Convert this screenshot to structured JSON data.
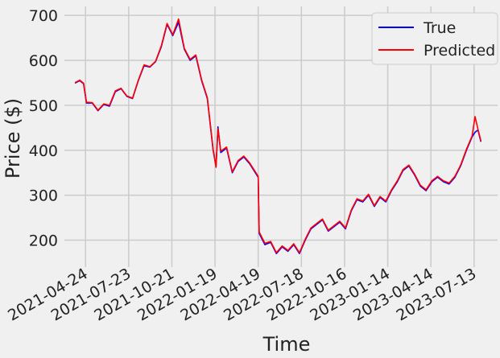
{
  "chart_data": {
    "type": "line",
    "title": "",
    "xlabel": "Time",
    "ylabel": "Price ($)",
    "ylim": [
      140,
      720
    ],
    "xlim": [
      "2021-03-11",
      "2023-08-31"
    ],
    "grid": true,
    "legend_position": "top-right",
    "x_ticks": [
      "2021-04-24",
      "2021-07-23",
      "2021-10-21",
      "2022-01-19",
      "2022-04-19",
      "2022-07-18",
      "2022-10-16",
      "2023-01-14",
      "2023-04-14",
      "2023-07-13"
    ],
    "y_ticks": [
      200,
      300,
      400,
      500,
      600,
      700
    ],
    "colors": {
      "true": "#0000ff",
      "predicted": "#ff0000"
    },
    "x": [
      "2021-04-03",
      "2021-04-12",
      "2021-04-20",
      "2021-04-26",
      "2021-05-08",
      "2021-05-20",
      "2021-06-01",
      "2021-06-13",
      "2021-06-25",
      "2021-07-07",
      "2021-07-19",
      "2021-07-31",
      "2021-08-12",
      "2021-08-24",
      "2021-09-05",
      "2021-09-17",
      "2021-09-29",
      "2021-10-11",
      "2021-10-23",
      "2021-11-04",
      "2021-11-16",
      "2021-11-28",
      "2021-12-10",
      "2021-12-22",
      "2022-01-03",
      "2022-01-15",
      "2022-01-21",
      "2022-01-25",
      "2022-01-31",
      "2022-02-12",
      "2022-02-24",
      "2022-03-08",
      "2022-03-20",
      "2022-04-01",
      "2022-04-13",
      "2022-04-19",
      "2022-04-21",
      "2022-05-03",
      "2022-05-15",
      "2022-05-27",
      "2022-06-08",
      "2022-06-20",
      "2022-07-02",
      "2022-07-14",
      "2022-07-26",
      "2022-08-07",
      "2022-08-19",
      "2022-08-31",
      "2022-09-12",
      "2022-09-24",
      "2022-10-06",
      "2022-10-18",
      "2022-10-30",
      "2022-11-11",
      "2022-11-23",
      "2022-12-05",
      "2022-12-17",
      "2022-12-29",
      "2023-01-10",
      "2023-01-22",
      "2023-02-03",
      "2023-02-15",
      "2023-02-27",
      "2023-03-11",
      "2023-03-23",
      "2023-04-04",
      "2023-04-16",
      "2023-04-28",
      "2023-05-10",
      "2023-05-22",
      "2023-06-03",
      "2023-06-15",
      "2023-06-27",
      "2023-07-09",
      "2023-07-15",
      "2023-07-21",
      "2023-07-27"
    ],
    "series": [
      {
        "name": "True",
        "values": [
          550,
          555,
          548,
          505,
          505,
          488,
          502,
          498,
          530,
          537,
          520,
          515,
          555,
          588,
          585,
          597,
          630,
          680,
          655,
          685,
          625,
          600,
          610,
          555,
          515,
          400,
          365,
          452,
          395,
          405,
          350,
          375,
          385,
          370,
          350,
          340,
          215,
          190,
          195,
          170,
          185,
          175,
          190,
          170,
          200,
          225,
          235,
          245,
          220,
          230,
          240,
          225,
          265,
          290,
          285,
          300,
          275,
          295,
          285,
          310,
          330,
          355,
          365,
          345,
          320,
          310,
          330,
          340,
          330,
          325,
          340,
          365,
          400,
          430,
          440,
          445,
          420
        ]
      },
      {
        "name": "Predicted",
        "values": [
          551,
          556,
          549,
          507,
          506,
          489,
          503,
          500,
          532,
          538,
          521,
          516,
          556,
          590,
          586,
          598,
          632,
          682,
          657,
          692,
          627,
          602,
          612,
          557,
          517,
          402,
          362,
          448,
          398,
          407,
          352,
          377,
          387,
          372,
          352,
          342,
          218,
          193,
          197,
          172,
          187,
          177,
          192,
          172,
          202,
          227,
          237,
          247,
          222,
          232,
          242,
          227,
          267,
          292,
          287,
          302,
          277,
          297,
          287,
          312,
          332,
          357,
          367,
          347,
          322,
          312,
          332,
          342,
          332,
          327,
          342,
          367,
          402,
          432,
          475,
          447,
          422
        ]
      }
    ]
  }
}
